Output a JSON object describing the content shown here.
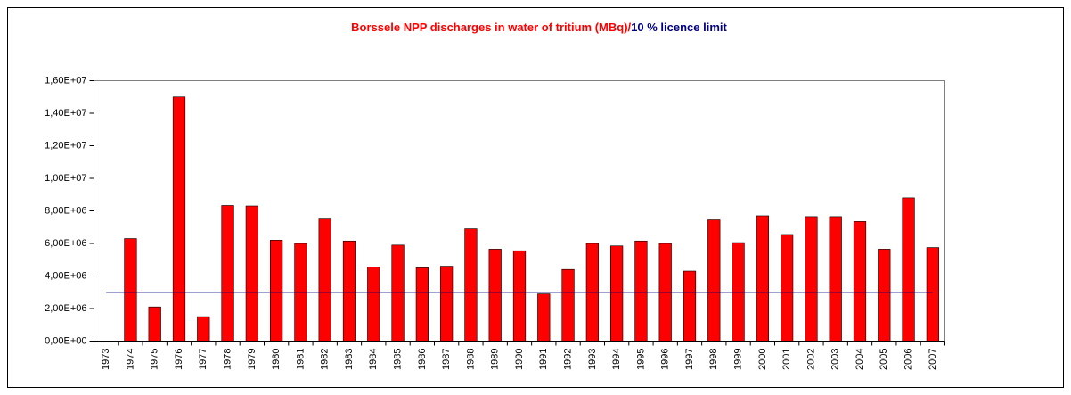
{
  "chart_data": {
    "type": "bar",
    "title_parts": [
      {
        "text": "Borssele NPP discharges in water of tritium (MBq)/",
        "color": "#ff0000"
      },
      {
        "text": "10 % licence limit",
        "color": "#000080"
      }
    ],
    "categories": [
      "1973",
      "1974",
      "1975",
      "1976",
      "1977",
      "1978",
      "1979",
      "1980",
      "1981",
      "1982",
      "1983",
      "1984",
      "1985",
      "1986",
      "1987",
      "1988",
      "1989",
      "1990",
      "1991",
      "1992",
      "1993",
      "1994",
      "1995",
      "1996",
      "1997",
      "1998",
      "1999",
      "2000",
      "2001",
      "2002",
      "2003",
      "2004",
      "2005",
      "2006",
      "2007"
    ],
    "series": [
      {
        "color": "#ff0000",
        "values": [
          null,
          6300000,
          2100000,
          15000000,
          1500000,
          8330000,
          8300000,
          6200000,
          6000000,
          7500000,
          6150000,
          4550000,
          5900000,
          4500000,
          4600000,
          6900000,
          5650000,
          5550000,
          2900000,
          4400000,
          6000000,
          5850000,
          6150000,
          6000000,
          4300000,
          7450000,
          6050000,
          7700000,
          6550000,
          7650000,
          7650000,
          7350000,
          5650000,
          8800000,
          5750000
        ]
      }
    ],
    "limit_line": {
      "value": 3000000,
      "color": "#000080"
    },
    "ylim": [
      0,
      16000000
    ],
    "yticks": [
      {
        "value": 0,
        "label": "0,00E+00"
      },
      {
        "value": 2000000,
        "label": "2,00E+06"
      },
      {
        "value": 4000000,
        "label": "4,00E+06"
      },
      {
        "value": 6000000,
        "label": "6,00E+06"
      },
      {
        "value": 8000000,
        "label": "8,00E+06"
      },
      {
        "value": 10000000,
        "label": "1,00E+07"
      },
      {
        "value": 12000000,
        "label": "1,20E+07"
      },
      {
        "value": 14000000,
        "label": "1,40E+07"
      },
      {
        "value": 16000000,
        "label": "1,60E+07"
      }
    ],
    "grid": false
  }
}
